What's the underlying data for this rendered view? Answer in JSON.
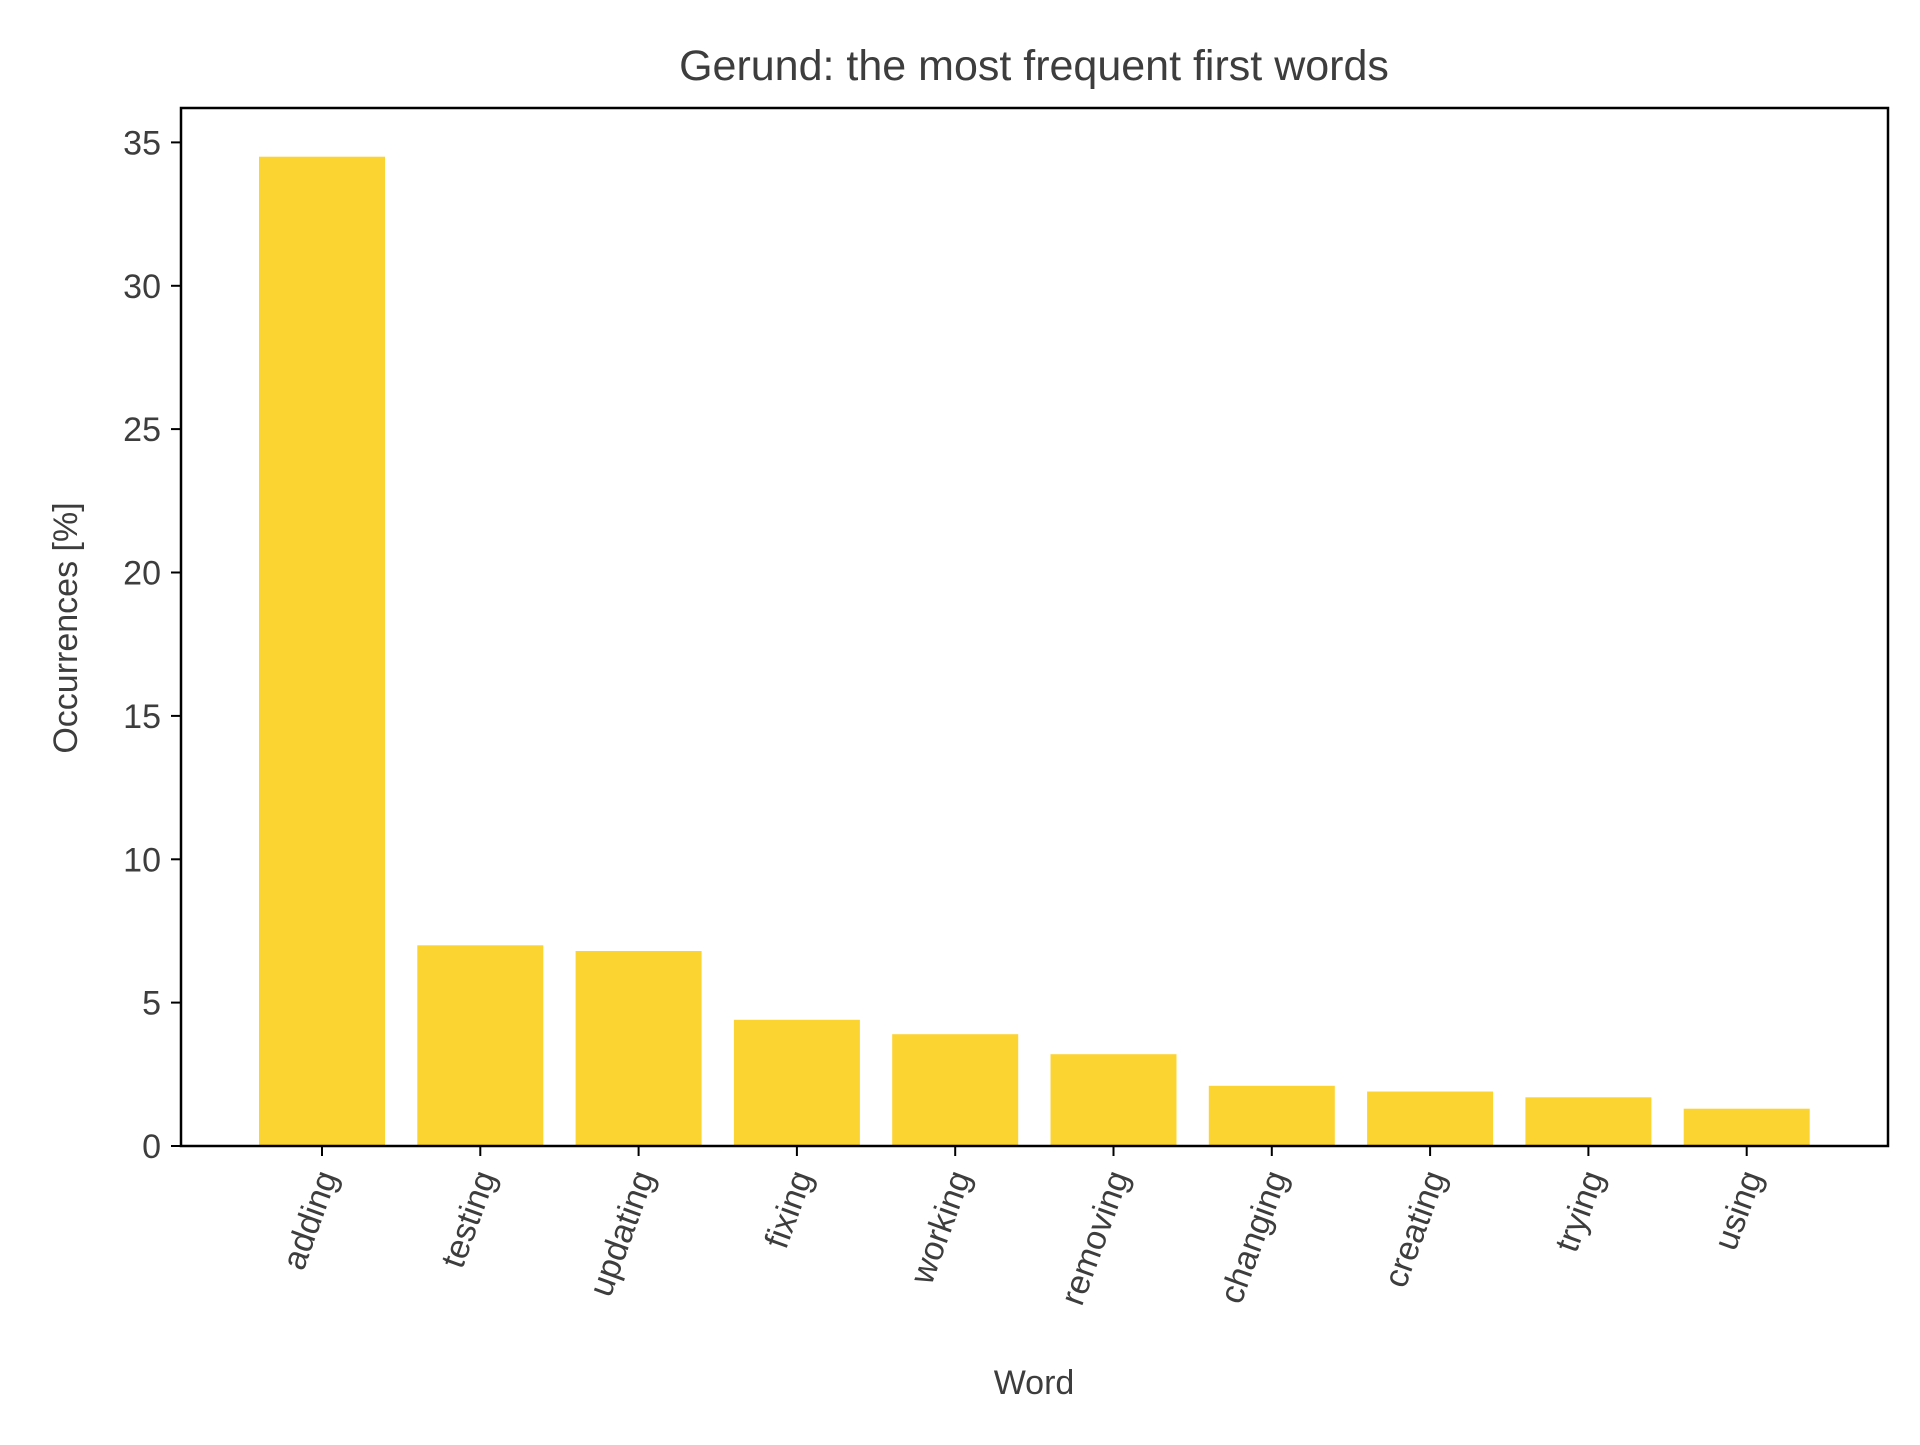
{
  "chart_data": {
    "type": "bar",
    "title": "Gerund: the most frequent first words",
    "xlabel": "Word",
    "ylabel": "Occurrences [%]",
    "categories": [
      "adding",
      "testing",
      "updating",
      "fixing",
      "working",
      "removing",
      "changing",
      "creating",
      "trying",
      "using"
    ],
    "values": [
      34.5,
      7.0,
      6.8,
      4.4,
      3.9,
      3.2,
      2.1,
      1.9,
      1.7,
      1.3
    ],
    "ylim": [
      0,
      36.2
    ],
    "yticks": [
      0,
      5,
      10,
      15,
      20,
      25,
      30,
      35
    ],
    "ytick_labels": [
      "0",
      "5",
      "10",
      "15",
      "20",
      "25",
      "30",
      "35"
    ],
    "grid": false,
    "legend": "none",
    "colors": {
      "bar": "#fcd431",
      "axis": "#000000",
      "text": "#3d3d3d",
      "background": "#ffffff"
    }
  }
}
